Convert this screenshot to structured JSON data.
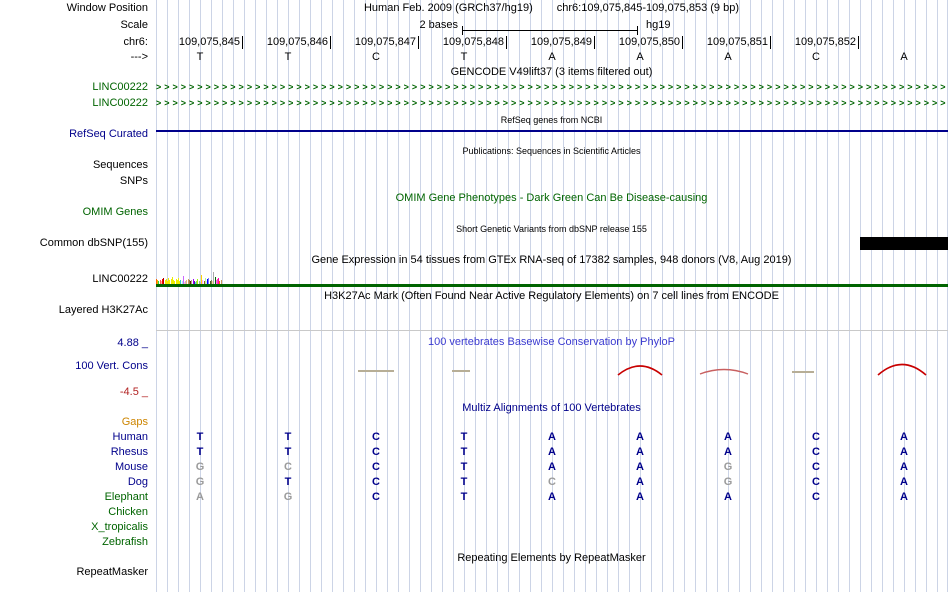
{
  "colors": {
    "navy": "#00008B",
    "green": "#006400",
    "orange": "#cd8500",
    "red": "#b22222",
    "gray_letter": "#9b9b9b",
    "guideline": "#ccd4e6",
    "refseq_bar": "#00008B",
    "dbsnp_box": "#000000",
    "conservation_red": "#c80000",
    "header_blue": "#3b3bd0"
  },
  "window": {
    "assembly": "Human Feb. 2009 (GRCh37/hg19)",
    "position": "chr6:109,075,845-109,075,853 (9 bp)"
  },
  "ruler": {
    "window_label": "Window Position",
    "scale_label": "Scale",
    "scale_value": "2 bases",
    "assembly_tag": "hg19",
    "chrom_label": "chr6:",
    "strand_label": "--->",
    "coordinates": [
      "109,075,845",
      "109,075,846",
      "109,075,847",
      "109,075,848",
      "109,075,849",
      "109,075,850",
      "109,075,851",
      "109,075,852"
    ],
    "bases": [
      "T",
      "T",
      "C",
      "T",
      "A",
      "A",
      "A",
      "C",
      "A"
    ]
  },
  "tracks": {
    "gencode": {
      "header": "GENCODE V49lift37 (3 items filtered out)",
      "items": [
        {
          "label": "LINC00222"
        },
        {
          "label": "LINC00222"
        }
      ]
    },
    "refseq": {
      "header": "RefSeq genes from NCBI",
      "label": "RefSeq Curated"
    },
    "publications": {
      "header": "Publications: Sequences in Scientific Articles",
      "labels": [
        "Sequences",
        "SNPs"
      ]
    },
    "omim": {
      "header": "OMIM Gene Phenotypes - Dark Green Can Be Disease-causing",
      "label": "OMIM Genes"
    },
    "dbsnp": {
      "header": "Short Genetic Variants from dbSNP release 155",
      "label": "Common dbSNP(155)"
    },
    "gtex": {
      "header": "Gene Expression in 54 tissues from GTEx RNA-seq of 17382 samples, 948 donors (V8, Aug 2019)",
      "label": "LINC00222",
      "bars": [
        {
          "h": 5,
          "c": "#FF6600"
        },
        {
          "h": 4,
          "c": "#FFAA00"
        },
        {
          "h": 3,
          "c": "#33DD33"
        },
        {
          "h": 4,
          "c": "#FF5555"
        },
        {
          "h": 3,
          "c": "#FFAA99"
        },
        {
          "h": 5,
          "c": "#FF0000"
        },
        {
          "h": 6,
          "c": "#AA0000"
        },
        {
          "h": 4,
          "c": "#EEEE00"
        },
        {
          "h": 5,
          "c": "#EEEE00"
        },
        {
          "h": 3,
          "c": "#EEEE00"
        },
        {
          "h": 6,
          "c": "#EEEE00"
        },
        {
          "h": 4,
          "c": "#EEEE00"
        },
        {
          "h": 5,
          "c": "#EEEE00"
        },
        {
          "h": 7,
          "c": "#EEEE00"
        },
        {
          "h": 4,
          "c": "#EEEE00"
        },
        {
          "h": 3,
          "c": "#EEEE00"
        },
        {
          "h": 5,
          "c": "#EEEE00"
        },
        {
          "h": 4,
          "c": "#EEEE00"
        },
        {
          "h": 6,
          "c": "#EEEE00"
        },
        {
          "h": 3,
          "c": "#EEEE00"
        },
        {
          "h": 4,
          "c": "#33CCCC"
        },
        {
          "h": 3,
          "c": "#AAEEFF"
        },
        {
          "h": 8,
          "c": "#CC66FF"
        },
        {
          "h": 2,
          "c": "#FFCCCC"
        },
        {
          "h": 3,
          "c": "#CCAADD"
        },
        {
          "h": 4,
          "c": "#EEBB77"
        },
        {
          "h": 5,
          "c": "#CC9955"
        },
        {
          "h": 4,
          "c": "#8B7355"
        },
        {
          "h": 3,
          "c": "#552200"
        },
        {
          "h": 4,
          "c": "#BB9988"
        },
        {
          "h": 5,
          "c": "#9900FF"
        },
        {
          "h": 3,
          "c": "#660099"
        },
        {
          "h": 2,
          "c": "#22FFDD"
        },
        {
          "h": 3,
          "c": "#AABB66"
        },
        {
          "h": 5,
          "c": "#99FF00"
        },
        {
          "h": 3,
          "c": "#99BB88"
        },
        {
          "h": 2,
          "c": "#AAAAFF"
        },
        {
          "h": 9,
          "c": "#FFD700"
        },
        {
          "h": 4,
          "c": "#FFAAFF"
        },
        {
          "h": 3,
          "c": "#995522"
        },
        {
          "h": 6,
          "c": "#AAFF99"
        },
        {
          "h": 3,
          "c": "#DDDDDD"
        },
        {
          "h": 5,
          "c": "#0000FF"
        },
        {
          "h": 6,
          "c": "#7777FF"
        },
        {
          "h": 3,
          "c": "#555522"
        },
        {
          "h": 4,
          "c": "#778855"
        },
        {
          "h": 3,
          "c": "#FFDD99"
        },
        {
          "h": 12,
          "c": "#AAAAAA"
        },
        {
          "h": 7,
          "c": "#006600"
        },
        {
          "h": 4,
          "c": "#FF66FF"
        },
        {
          "h": 5,
          "c": "#FF5599"
        },
        {
          "h": 6,
          "c": "#FF00BB"
        },
        {
          "h": 3,
          "c": "#FF6600"
        },
        {
          "h": 4,
          "c": "#CC9955"
        }
      ]
    },
    "h3k27ac": {
      "header": "H3K27Ac Mark (Often Found Near Active Regulatory Elements) on 7 cell lines from ENCODE",
      "label": "Layered H3K27Ac"
    },
    "conservation": {
      "header": "100 vertebrates Basewise Conservation by PhyloP",
      "label": "100 Vert. Cons",
      "max": "4.88 _",
      "min": "-4.5 _"
    },
    "multiz": {
      "header": "Multiz Alignments of 100 Vertebrates",
      "rows": [
        {
          "name": "Gaps",
          "color": "orange",
          "bases": [
            "",
            "",
            "",
            "",
            "",
            "",
            "",
            "",
            ""
          ],
          "gray": []
        },
        {
          "name": "Human",
          "color": "navy",
          "bases": [
            "T",
            "T",
            "C",
            "T",
            "A",
            "A",
            "A",
            "C",
            "A"
          ],
          "gray": []
        },
        {
          "name": "Rhesus",
          "color": "navy",
          "bases": [
            "T",
            "T",
            "C",
            "T",
            "A",
            "A",
            "A",
            "C",
            "A"
          ],
          "gray": []
        },
        {
          "name": "Mouse",
          "color": "navy",
          "bases": [
            "G",
            "C",
            "C",
            "T",
            "A",
            "A",
            "G",
            "C",
            "A"
          ],
          "gray": [
            0,
            1,
            6
          ]
        },
        {
          "name": "Dog",
          "color": "navy",
          "bases": [
            "G",
            "T",
            "C",
            "T",
            "C",
            "A",
            "G",
            "C",
            "A"
          ],
          "gray": [
            0,
            4,
            6
          ]
        },
        {
          "name": "Elephant",
          "color": "green",
          "bases": [
            "A",
            "G",
            "C",
            "T",
            "A",
            "A",
            "A",
            "C",
            "A"
          ],
          "gray": [
            0,
            1
          ]
        },
        {
          "name": "Chicken",
          "color": "green",
          "bases": [
            "",
            "",
            "",
            "",
            "",
            "",
            "",
            "",
            ""
          ],
          "gray": []
        },
        {
          "name": "X_tropicalis",
          "color": "green",
          "bases": [
            "",
            "",
            "",
            "",
            "",
            "",
            "",
            "",
            ""
          ],
          "gray": []
        },
        {
          "name": "Zebrafish",
          "color": "green",
          "bases": [
            "",
            "",
            "",
            "",
            "",
            "",
            "",
            "",
            ""
          ],
          "gray": []
        }
      ]
    },
    "repeatmasker": {
      "header": "Repeating Elements by RepeatMasker",
      "label": "RepeatMasker"
    }
  }
}
